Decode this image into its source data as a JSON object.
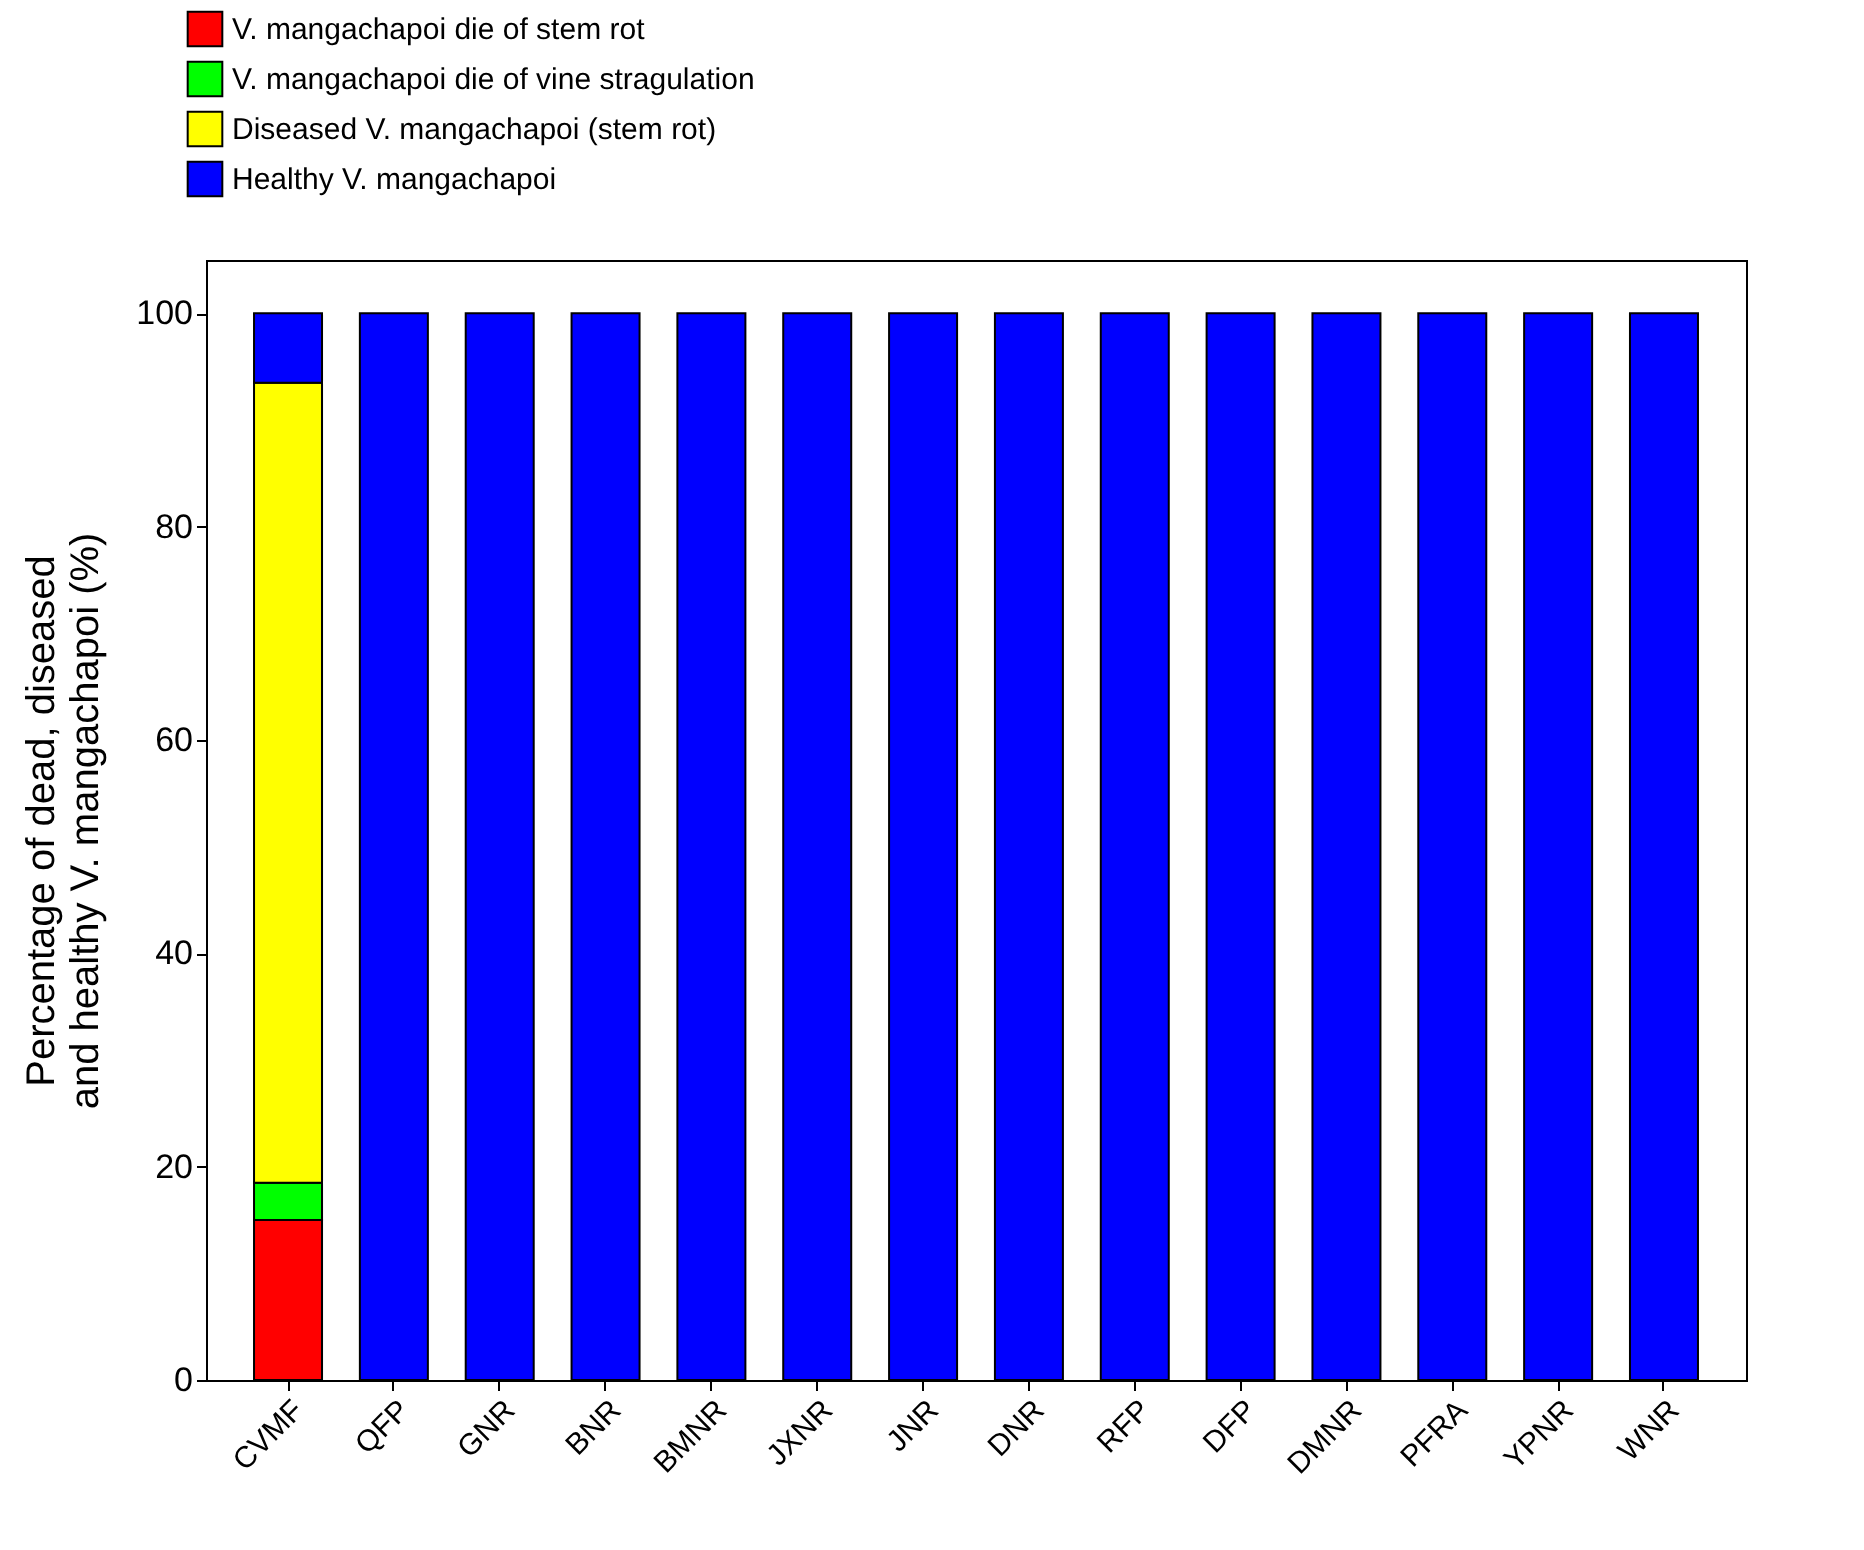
{
  "chart_data": {
    "type": "bar",
    "stacked": true,
    "ylabel": "Percentage of dead, diseased\nand healthy V. mangachapoi (%)",
    "categories": [
      "CVMF",
      "QFP",
      "GNR",
      "BNR",
      "BMNR",
      "JXNR",
      "JNR",
      "DNR",
      "RFP",
      "DFP",
      "DMNR",
      "PFRA",
      "YPNR",
      "WNR"
    ],
    "series": [
      {
        "name": "V. mangachapoi die of stem rot",
        "color": "#ff0000",
        "values": [
          15,
          0,
          0,
          0,
          0,
          0,
          0,
          0,
          0,
          0,
          0,
          0,
          0,
          0
        ]
      },
      {
        "name": "V. mangachapoi die of vine stragulation",
        "color": "#00ff00",
        "values": [
          3.5,
          0,
          0,
          0,
          0,
          0,
          0,
          0,
          0,
          0,
          0,
          0,
          0,
          0
        ]
      },
      {
        "name": "Diseased V. mangachapoi (stem rot)",
        "color": "#ffff00",
        "values": [
          75,
          0,
          0,
          0,
          0,
          0,
          0,
          0,
          0,
          0,
          0,
          0,
          0,
          0
        ]
      },
      {
        "name": "Healthy V. mangachapoi",
        "color": "#0000ff",
        "values": [
          6.5,
          100,
          100,
          100,
          100,
          100,
          100,
          100,
          100,
          100,
          100,
          100,
          100,
          100
        ]
      }
    ],
    "ylim": [
      0,
      105
    ],
    "yticks": [
      0,
      20,
      40,
      60,
      80,
      100
    ],
    "grid": false,
    "legend": "top left"
  }
}
